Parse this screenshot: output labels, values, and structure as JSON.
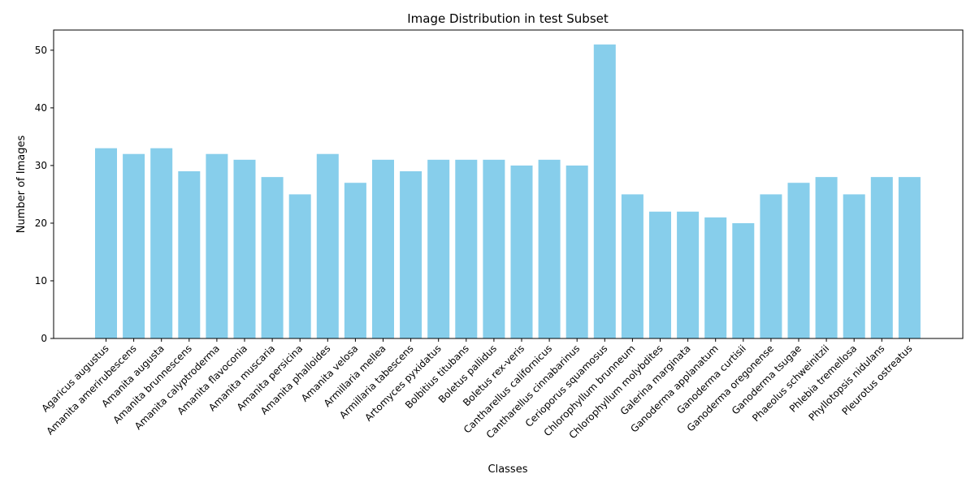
{
  "chart_data": {
    "type": "bar",
    "title": "Image Distribution in test Subset",
    "xlabel": "Classes",
    "ylabel": "Number of Images",
    "ylim": [
      0,
      53.5
    ],
    "yticks": [
      0,
      10,
      20,
      30,
      40,
      50
    ],
    "grid": false,
    "bar_color": "#87ceeb",
    "categories": [
      "Agaricus augustus",
      "Amanita amerirubescens",
      "Amanita augusta",
      "Amanita brunnescens",
      "Amanita calyptroderma",
      "Amanita flavoconia",
      "Amanita muscaria",
      "Amanita persicina",
      "Amanita phalloides",
      "Amanita velosa",
      "Armillaria mellea",
      "Armillaria tabescens",
      "Artomyces pyxidatus",
      "Bolbitius titubans",
      "Boletus pallidus",
      "Boletus rex-veris",
      "Cantharellus californicus",
      "Cantharellus cinnabarinus",
      "Cerioporus squamosus",
      "Chlorophyllum brunneum",
      "Chlorophyllum molybdites",
      "Galerina marginata",
      "Ganoderma applanatum",
      "Ganoderma curtisii",
      "Ganoderma oregonense",
      "Ganoderma tsugae",
      "Phaeolus schweinitzii",
      "Phlebia tremellosa",
      "Phyllotopsis nidulans",
      "Pleurotus ostreatus"
    ],
    "values": [
      33,
      32,
      33,
      29,
      32,
      31,
      28,
      25,
      32,
      27,
      31,
      29,
      31,
      31,
      31,
      30,
      31,
      30,
      51,
      25,
      22,
      22,
      21,
      20,
      25,
      27,
      28,
      25,
      28,
      28
    ]
  }
}
